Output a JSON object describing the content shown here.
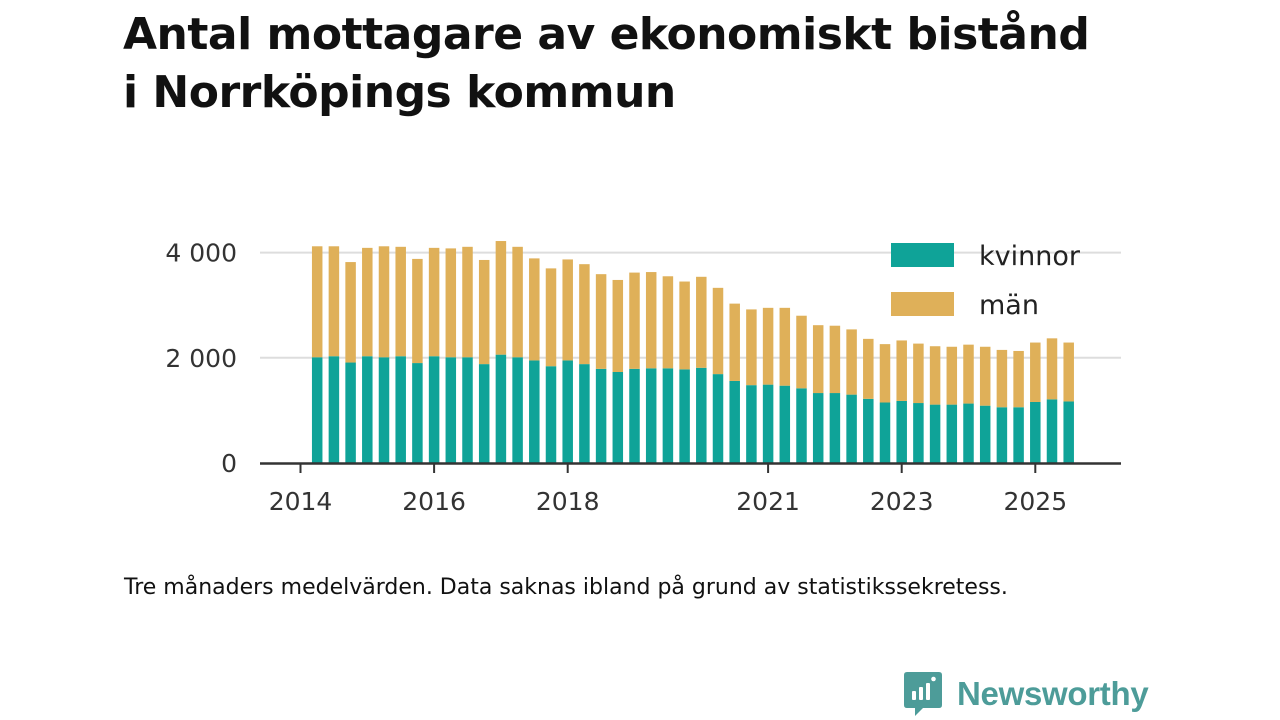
{
  "title": {
    "line1": "Antal mottagare av ekonomiskt bistånd",
    "line2": "i Norrköpings kommun"
  },
  "footnote": "Tre månaders medelvärden. Data saknas ibland på grund av statistikssekretess.",
  "brand": {
    "name": "Newsworthy",
    "icon": "newsworthy-logo-icon",
    "color": "#4d9c99"
  },
  "chart_data": {
    "type": "bar",
    "stacked": true,
    "title": "Antal mottagare av ekonomiskt bistånd i Norrköpings kommun",
    "xlabel": "",
    "ylabel": "",
    "ylim": [
      0,
      4200
    ],
    "yticks": [
      0,
      2000,
      4000
    ],
    "ytick_labels": [
      "0",
      "2 000",
      "4 000"
    ],
    "grid": true,
    "legend_position": "top-right",
    "xlim": [
      2014.0,
      2025.7
    ],
    "x_ticks": [
      2014,
      2016,
      2018,
      2021,
      2023,
      2025
    ],
    "x_tick_labels": [
      "2014",
      "2016",
      "2018",
      "2021",
      "2023",
      "2025"
    ],
    "x_start": 2014.25,
    "x_step": 0.25,
    "series": [
      {
        "name": "kvinnor",
        "color": "#0fa398",
        "values": [
          2010,
          2030,
          1910,
          2030,
          2010,
          2030,
          1900,
          2030,
          2010,
          2010,
          1880,
          2060,
          2010,
          1950,
          1840,
          1950,
          1880,
          1790,
          1730,
          1790,
          1800,
          1800,
          1780,
          1810,
          1690,
          1560,
          1480,
          1490,
          1470,
          1420,
          1330,
          1330,
          1300,
          1220,
          1150,
          1180,
          1140,
          1110,
          1110,
          1130,
          1090,
          1060,
          1060,
          1160,
          1210,
          1170
        ]
      },
      {
        "name": "män",
        "color": "#dfb059",
        "values": [
          2110,
          2090,
          1910,
          2060,
          2110,
          2080,
          1980,
          2060,
          2070,
          2100,
          1980,
          2160,
          2100,
          1940,
          1860,
          1920,
          1900,
          1800,
          1750,
          1830,
          1830,
          1750,
          1670,
          1730,
          1640,
          1470,
          1440,
          1460,
          1480,
          1380,
          1290,
          1280,
          1240,
          1140,
          1110,
          1150,
          1130,
          1110,
          1100,
          1120,
          1120,
          1090,
          1070,
          1130,
          1160,
          1120
        ]
      }
    ]
  }
}
